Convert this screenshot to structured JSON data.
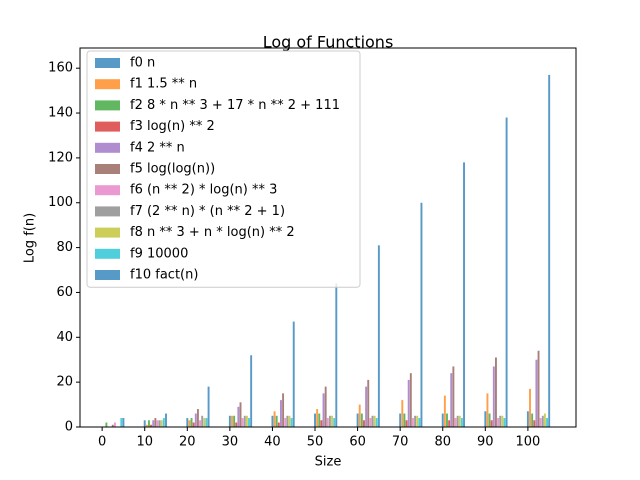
{
  "chart_data": {
    "type": "bar",
    "title": "Log of Functions",
    "x_label": "Size",
    "y_label": "Log f(n)",
    "x": [
      0,
      10,
      20,
      30,
      40,
      50,
      60,
      70,
      80,
      90,
      100
    ],
    "xlim": [
      -5.2,
      111.3
    ],
    "xticks": [
      0,
      10,
      20,
      30,
      40,
      50,
      60,
      70,
      80,
      90,
      100
    ],
    "ylim": [
      0,
      169
    ],
    "yticks": [
      0,
      20,
      40,
      60,
      80,
      100,
      120,
      140,
      160
    ],
    "legend": "upper left",
    "series": [
      {
        "name": "f0 n",
        "color": "#1f77b4",
        "values": [
          0,
          3,
          4,
          5,
          5,
          6,
          6,
          6,
          6,
          7,
          7
        ]
      },
      {
        "name": "f1 1.5 ** n",
        "color": "#ff7f0e",
        "values": [
          0,
          1,
          3,
          5,
          7,
          8,
          10,
          12,
          14,
          15,
          17
        ]
      },
      {
        "name": "f2 8 * n ** 3 + 17 * n ** 2 + 111",
        "color": "#2ca02c",
        "values": [
          2,
          3,
          4,
          5,
          5,
          6,
          6,
          6,
          6,
          6,
          6
        ]
      },
      {
        "name": "f3 log(n) ** 2",
        "color": "#d62728",
        "values": [
          0,
          1,
          2,
          2,
          2,
          3,
          3,
          3,
          3,
          3,
          3
        ]
      },
      {
        "name": "f4 2 ** n",
        "color": "#9467bd",
        "values": [
          0,
          3,
          6,
          9,
          12,
          15,
          18,
          21,
          24,
          27,
          30
        ]
      },
      {
        "name": "f5 log(log(n))",
        "color": "#8c564b",
        "values": [
          1,
          4,
          8,
          11,
          15,
          18,
          21,
          24,
          27,
          31,
          34
        ]
      },
      {
        "name": "f6 (n ** 2) * log(n) ** 3",
        "color": "#e377c2",
        "values": [
          2,
          3,
          3,
          4,
          4,
          4,
          4,
          4,
          4,
          4,
          4
        ]
      },
      {
        "name": "f7 (2 ** n) * (n ** 2 + 1)",
        "color": "#7f7f7f",
        "values": [
          0,
          3,
          5,
          5,
          5,
          5,
          5,
          5,
          5,
          5,
          5
        ]
      },
      {
        "name": "f8 n ** 3 + n * log(n) ** 2",
        "color": "#bcbd22",
        "values": [
          0,
          3,
          4,
          5,
          5,
          5,
          5,
          5,
          5,
          5,
          6
        ]
      },
      {
        "name": "f9 10000",
        "color": "#17becf",
        "values": [
          4,
          4,
          4,
          4,
          4,
          4,
          4,
          4,
          4,
          4,
          4
        ]
      },
      {
        "name": "f10 fact(n)",
        "color": "#1f77b4",
        "values": [
          4,
          6,
          18,
          32,
          47,
          64,
          81,
          100,
          118,
          138,
          157
        ]
      }
    ]
  }
}
